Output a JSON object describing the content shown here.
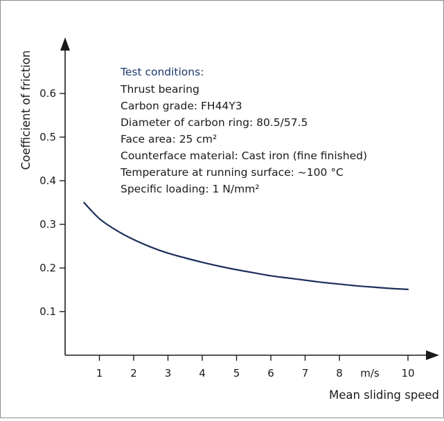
{
  "chart_data": {
    "type": "line",
    "title": "",
    "xlabel": "Mean sliding speed",
    "ylabel": "Coefficient of friction",
    "x_unit": "m/s",
    "xlim": [
      0,
      10.8
    ],
    "ylim": [
      0,
      0.75
    ],
    "x_ticks": [
      1,
      2,
      3,
      4,
      5,
      6,
      7,
      8,
      10
    ],
    "x_tick_labels": [
      "1",
      "2",
      "3",
      "4",
      "5",
      "6",
      "7",
      "8",
      "10"
    ],
    "y_ticks": [
      0.1,
      0.2,
      0.3,
      0.4,
      0.5,
      0.6
    ],
    "y_tick_labels": [
      "0.1",
      "0.2",
      "0.3",
      "0.4",
      "0.5",
      "0.6"
    ],
    "grid": false,
    "line_color": "#1b2f5a",
    "series": [
      {
        "x": [
          0.55,
          1.0,
          1.5,
          2.0,
          2.5,
          3.0,
          3.5,
          4.0,
          4.5,
          5.0,
          5.5,
          6.0,
          6.5,
          7.0,
          7.5,
          8.0,
          8.5,
          9.0,
          9.5,
          10.0
        ],
        "values": [
          0.35,
          0.313,
          0.286,
          0.265,
          0.248,
          0.234,
          0.223,
          0.213,
          0.204,
          0.196,
          0.189,
          0.182,
          0.177,
          0.172,
          0.167,
          0.163,
          0.159,
          0.156,
          0.153,
          0.151
        ]
      }
    ],
    "annotation": {
      "heading": "Test conditions:",
      "heading_color": "#1b3a6b",
      "lines": [
        "Thrust bearing",
        "Carbon grade: FH44Y3",
        "Diameter of carbon ring: 80.5/57.5",
        "Face area: 25 cm²",
        "Counterface material: Cast iron (fine finished)",
        "Temperature at running surface: ~100 °C",
        "Specific loading: 1 N/mm²"
      ]
    }
  }
}
